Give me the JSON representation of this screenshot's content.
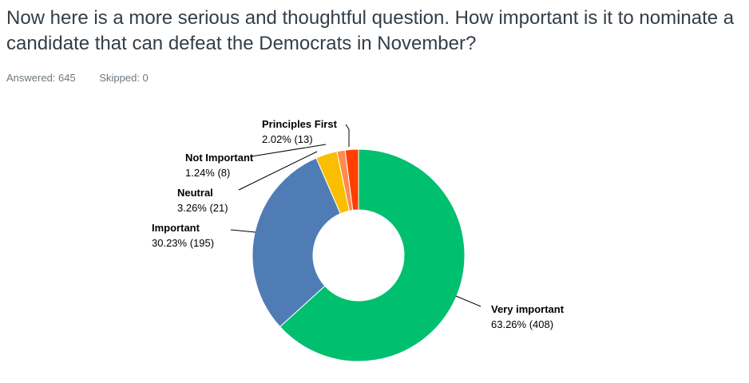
{
  "question": {
    "title": "Now here is a more serious and thoughtful question. How important is it to nominate a candidate that can defeat the Democrats in November?"
  },
  "stats": {
    "answered": "Answered: 645",
    "skipped": "Skipped: 0"
  },
  "chart_data": {
    "type": "pie",
    "style": "donut",
    "slices": [
      {
        "label": "Very important",
        "percent": 63.26,
        "count": 408,
        "value_text": "63.26% (408)",
        "color": "#00bf6f"
      },
      {
        "label": "Important",
        "percent": 30.23,
        "count": 195,
        "value_text": "30.23% (195)",
        "color": "#507cb6"
      },
      {
        "label": "Neutral",
        "percent": 3.26,
        "count": 21,
        "value_text": "3.26% (21)",
        "color": "#f9be00"
      },
      {
        "label": "Not Important",
        "percent": 1.24,
        "count": 8,
        "value_text": "1.24% (8)",
        "color": "#ff8b4f"
      },
      {
        "label": "Principles First",
        "percent": 2.02,
        "count": 13,
        "value_text": "2.02% (13)",
        "color": "#ff3e00"
      }
    ]
  }
}
